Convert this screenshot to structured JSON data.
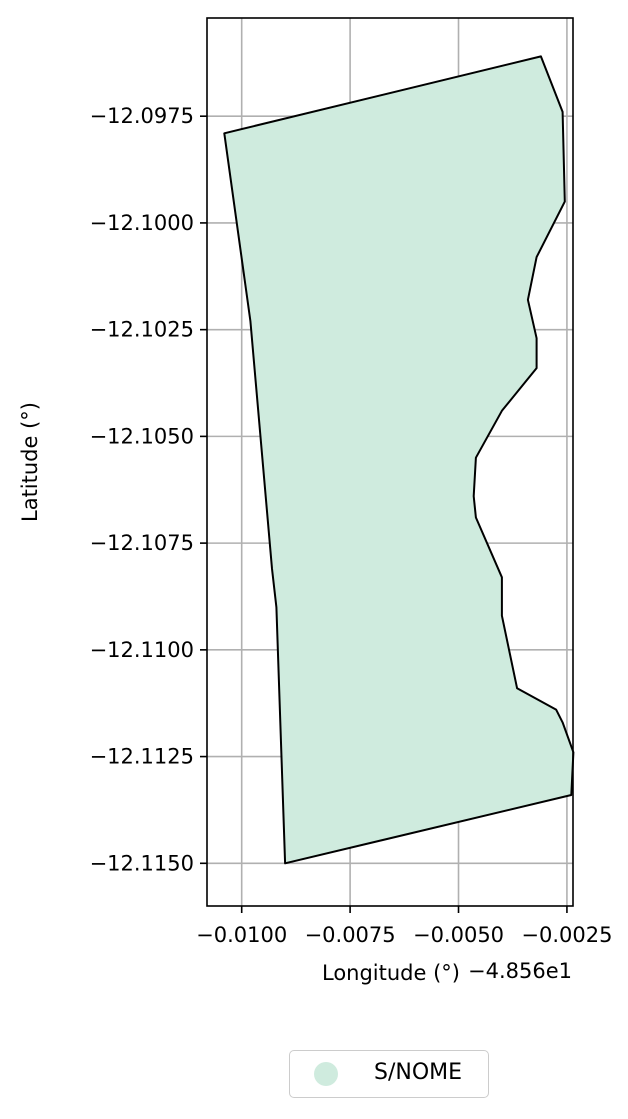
{
  "chart_data": {
    "type": "map",
    "xlabel": "Longitude (°)",
    "ylabel": "Latitude (°)",
    "x_offset_label": "−4.856e1",
    "xlim": [
      -0.0108,
      -0.00236
    ],
    "ylim": [
      -12.116,
      -12.0952
    ],
    "x_ticks": [
      -0.01,
      -0.0075,
      -0.005,
      -0.0025
    ],
    "x_tick_labels": [
      "−0.0100",
      "−0.0075",
      "−0.0050",
      "−0.0025"
    ],
    "y_ticks": [
      -12.0975,
      -12.1,
      -12.1025,
      -12.105,
      -12.1075,
      -12.11,
      -12.1125,
      -12.115
    ],
    "y_tick_labels": [
      "−12.0975",
      "−12.1000",
      "−12.1025",
      "−12.1050",
      "−12.1075",
      "−12.1100",
      "−12.1125",
      "−12.1150"
    ],
    "grid": true,
    "legend_placement": "bottom-center",
    "fill_color": "#cfebde",
    "edge_color": "#000000",
    "polygon": [
      [
        -0.0104,
        -12.0979
      ],
      [
        -0.0031,
        -12.0961
      ],
      [
        -0.0026,
        -12.0974
      ],
      [
        -0.00255,
        -12.0995
      ],
      [
        -0.0032,
        -12.1008
      ],
      [
        -0.0034,
        -12.1018
      ],
      [
        -0.0032,
        -12.1027
      ],
      [
        -0.0032,
        -12.1034
      ],
      [
        -0.004,
        -12.1044
      ],
      [
        -0.0046,
        -12.1055
      ],
      [
        -0.00465,
        -12.1064
      ],
      [
        -0.0046,
        -12.1069
      ],
      [
        -0.004,
        -12.1083
      ],
      [
        -0.004,
        -12.1092
      ],
      [
        -0.00365,
        -12.1109
      ],
      [
        -0.00275,
        -12.1114
      ],
      [
        -0.0026,
        -12.1117
      ],
      [
        -0.00235,
        -12.1124
      ],
      [
        -0.0024,
        -12.1134
      ],
      [
        -0.009,
        -12.115
      ],
      [
        -0.0092,
        -12.109
      ],
      [
        -0.0093,
        -12.1081
      ],
      [
        -0.0098,
        -12.1023
      ]
    ],
    "series": [
      {
        "name": "S/NOME",
        "color": "#cfebde"
      }
    ]
  }
}
